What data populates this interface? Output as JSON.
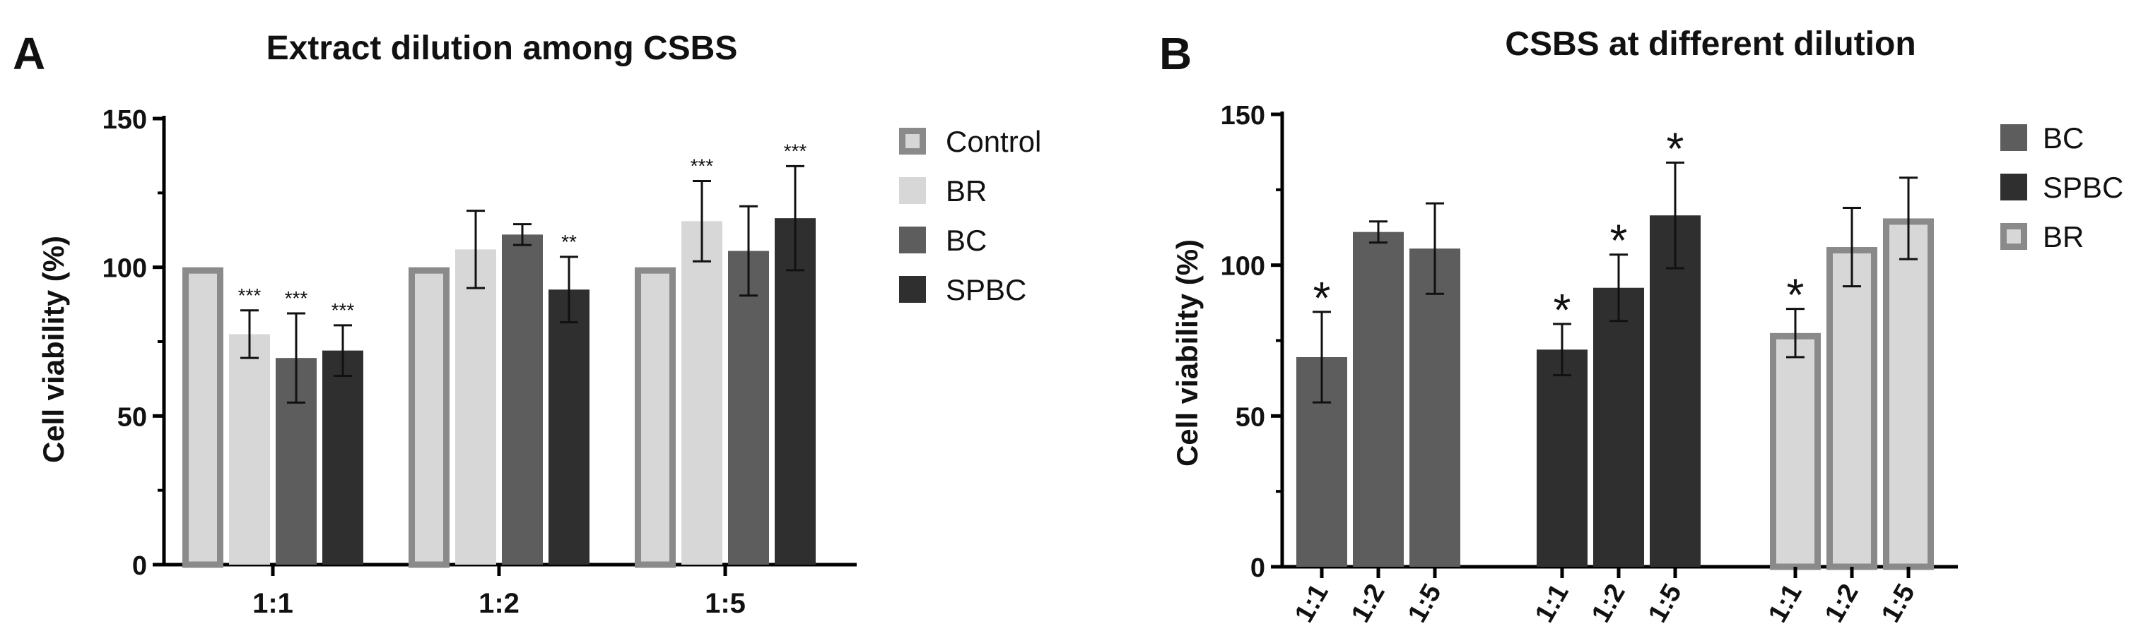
{
  "figure": {
    "panels": [
      "A",
      "B"
    ]
  },
  "colors": {
    "control_fill": "#d7d7d7",
    "control_edge": "#8a8a8a",
    "br": "#d7d7d7",
    "bc": "#5d5d5d",
    "spbc": "#2f2f2f",
    "axis": "#000000"
  },
  "chart_data": [
    {
      "panel": "A",
      "type": "bar",
      "title": "Extract dilution among  CSBS",
      "xlabel": "",
      "ylabel": "Cell viability  (%)",
      "ylim": [
        0,
        150
      ],
      "yticks": [
        0,
        50,
        100,
        150
      ],
      "categories": [
        "1:1",
        "1:2",
        "1:5"
      ],
      "legend_position": "right",
      "series": [
        {
          "name": "Control",
          "values": [
            100,
            100,
            100
          ],
          "errors": [
            0,
            0,
            0
          ],
          "annotations": [
            "",
            "",
            ""
          ]
        },
        {
          "name": "BR",
          "values": [
            77.5,
            106,
            115.5
          ],
          "errors": [
            8,
            13,
            13.5
          ],
          "annotations": [
            "***",
            "",
            "***"
          ]
        },
        {
          "name": "BC",
          "values": [
            69.5,
            111,
            105.5
          ],
          "errors": [
            15,
            3.5,
            15
          ],
          "annotations": [
            "***",
            "",
            ""
          ]
        },
        {
          "name": "SPBC",
          "values": [
            72,
            92.5,
            116.5
          ],
          "errors": [
            8.5,
            11,
            17.5
          ],
          "annotations": [
            "***",
            "**",
            "***"
          ]
        }
      ]
    },
    {
      "panel": "B",
      "type": "bar",
      "title": "CSBS at different dilution",
      "xlabel": "",
      "ylabel": "Cell viability  (%)",
      "ylim": [
        0,
        150
      ],
      "yticks": [
        0,
        50,
        100,
        150
      ],
      "legend_position": "right",
      "series": [
        {
          "name": "BC",
          "categories": [
            "1:1",
            "1:2",
            "1:5"
          ],
          "values": [
            69.5,
            111,
            105.5
          ],
          "errors": [
            15,
            3.5,
            15
          ],
          "annotations": [
            "*",
            "",
            ""
          ]
        },
        {
          "name": "SPBC",
          "categories": [
            "1:1",
            "1:2",
            "1:5"
          ],
          "values": [
            72,
            92.5,
            116.5
          ],
          "errors": [
            8.5,
            11,
            17.5
          ],
          "annotations": [
            "*",
            "*",
            "*"
          ]
        },
        {
          "name": "BR",
          "categories": [
            "1:1",
            "1:2",
            "1:5"
          ],
          "values": [
            77.5,
            106,
            115.5
          ],
          "errors": [
            8,
            13,
            13.5
          ],
          "annotations": [
            "*",
            "",
            ""
          ]
        }
      ]
    }
  ]
}
